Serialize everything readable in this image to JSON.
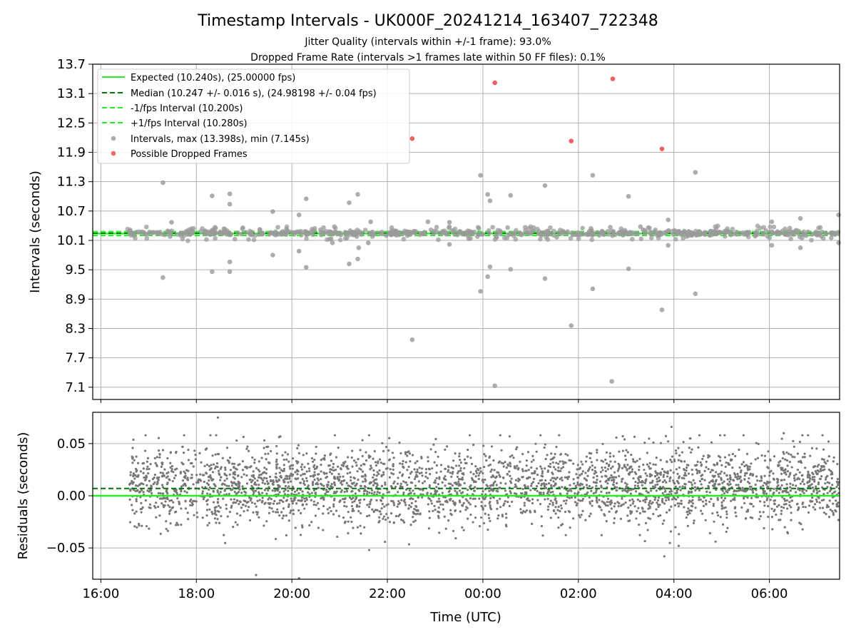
{
  "title": "Timestamp Intervals - UK000F_20241214_163407_722348",
  "subtitles": [
    "Jitter Quality (intervals within +/-1 frame): 93.0%",
    "Dropped Frame Rate (intervals >1 frames late within 50 FF files): 0.1%"
  ],
  "colors": {
    "expected": "#22ee22",
    "median": "#007700",
    "fps_band": "#22ee22",
    "intervals": "#999999",
    "dropped": "#ee4444",
    "residuals": "#777777",
    "grid": "#b0b0b0"
  },
  "chart_data": [
    {
      "type": "scatter",
      "name": "intervals-panel",
      "ylabel": "Intervals (seconds)",
      "xlabel": "",
      "x_unit": "hours since 16:00 UTC (axis ticks 16:00 .. 06:00, next day after 00:00)",
      "xlim": [
        -0.17,
        15.47
      ],
      "ylim": [
        6.85,
        13.7
      ],
      "grid": true,
      "legend_position": "upper-left",
      "y_ticks": [
        "7.1",
        "7.7",
        "8.3",
        "8.9",
        "9.5",
        "10.1",
        "10.7",
        "11.3",
        "11.9",
        "12.5",
        "13.1",
        "13.7"
      ],
      "y_tick_values": [
        7.1,
        7.7,
        8.3,
        8.9,
        9.5,
        10.1,
        10.7,
        11.3,
        11.9,
        12.5,
        13.1,
        13.7
      ],
      "reference_lines": [
        {
          "label": "Expected (10.240s), (25.00000 fps)",
          "value": 10.24,
          "style": "solid",
          "color_key": "expected"
        },
        {
          "label": "Median (10.247 +/- 0.016 s), (24.98198 +/- 0.04 fps)",
          "value": 10.247,
          "style": "dashed",
          "color_key": "median"
        },
        {
          "label": "-1/fps Interval (10.200s)",
          "value": 10.2,
          "style": "dashed",
          "color_key": "fps_band"
        },
        {
          "label": "+1/fps Interval (10.280s)",
          "value": 10.28,
          "style": "dashed",
          "color_key": "fps_band"
        }
      ],
      "series": [
        {
          "name": "Intervals, max (13.398s), min (7.145s)",
          "color_key": "intervals",
          "points": [
            [
              1.3,
              11.28
            ],
            [
              1.3,
              9.34
            ],
            [
              1.45,
              10.18
            ],
            [
              1.48,
              10.47
            ],
            [
              2.33,
              11.01
            ],
            [
              2.33,
              9.46
            ],
            [
              2.7,
              11.05
            ],
            [
              2.7,
              10.84
            ],
            [
              2.7,
              9.66
            ],
            [
              2.7,
              9.46
            ],
            [
              3.6,
              10.69
            ],
            [
              3.6,
              9.8
            ],
            [
              4.15,
              10.62
            ],
            [
              4.15,
              9.88
            ],
            [
              4.3,
              10.95
            ],
            [
              4.3,
              9.55
            ],
            [
              4.85,
              10.05
            ],
            [
              5.2,
              10.87
            ],
            [
              5.2,
              9.62
            ],
            [
              5.38,
              11.04
            ],
            [
              5.38,
              9.72
            ],
            [
              5.4,
              9.95
            ],
            [
              5.65,
              10.48
            ],
            [
              5.6,
              10.05
            ],
            [
              6.85,
              10.48
            ],
            [
              6.52,
              8.07
            ],
            [
              7.3,
              10.47
            ],
            [
              7.3,
              10.02
            ],
            [
              7.95,
              11.43
            ],
            [
              7.95,
              9.06
            ],
            [
              8.1,
              11.04
            ],
            [
              8.1,
              9.36
            ],
            [
              8.15,
              10.91
            ],
            [
              8.15,
              9.56
            ],
            [
              8.25,
              7.13
            ],
            [
              8.58,
              11.02
            ],
            [
              8.58,
              9.51
            ],
            [
              9.3,
              11.22
            ],
            [
              9.3,
              9.32
            ],
            [
              9.85,
              8.36
            ],
            [
              10.3,
              11.43
            ],
            [
              10.3,
              9.11
            ],
            [
              11.05,
              11.0
            ],
            [
              11.05,
              9.52
            ],
            [
              11.3,
              10.38
            ],
            [
              11.75,
              8.68
            ],
            [
              11.88,
              10.52
            ],
            [
              11.88,
              10.0
            ],
            [
              12.1,
              10.28
            ],
            [
              12.45,
              11.49
            ],
            [
              12.45,
              9.01
            ],
            [
              14.05,
              10.48
            ],
            [
              14.05,
              10.0
            ],
            [
              14.65,
              10.55
            ],
            [
              14.65,
              9.95
            ],
            [
              15.45,
              10.62
            ],
            [
              15.45,
              10.05
            ],
            [
              10.7,
              7.22
            ]
          ]
        },
        {
          "name": "Possible Dropped Frames",
          "color_key": "dropped",
          "points": [
            [
              6.52,
              12.18
            ],
            [
              8.25,
              13.32
            ],
            [
              9.85,
              12.13
            ],
            [
              10.72,
              13.4
            ],
            [
              11.75,
              11.97
            ]
          ]
        }
      ]
    },
    {
      "type": "scatter",
      "name": "residuals-panel",
      "ylabel": "Residuals (seconds)",
      "xlabel": "Time (UTC)",
      "xlim": [
        -0.17,
        15.47
      ],
      "ylim": [
        -0.08,
        0.08
      ],
      "grid": true,
      "y_ticks": [
        "−0.05",
        "0.00",
        "0.05"
      ],
      "y_tick_values": [
        -0.05,
        0.0,
        0.05
      ],
      "x_ticks": [
        "16:00",
        "18:00",
        "20:00",
        "22:00",
        "00:00",
        "02:00",
        "04:00",
        "06:00"
      ],
      "x_tick_values": [
        0,
        2,
        4,
        6,
        8,
        10,
        12,
        14
      ],
      "reference_lines": [
        {
          "value": 0.0,
          "style": "solid",
          "color_key": "expected"
        },
        {
          "value": 0.007,
          "style": "dashed",
          "color_key": "median"
        }
      ],
      "series": [
        {
          "name": "residuals",
          "color_key": "residuals",
          "x_range": [
            0.6,
            15.45
          ],
          "count": 3200,
          "mean": 0.01,
          "spread": 0.018,
          "outliers": [
            [
              2.45,
              0.075
            ],
            [
              3.25,
              -0.076
            ],
            [
              4.15,
              -0.079
            ],
            [
              11.95,
              0.066
            ],
            [
              11.8,
              -0.058
            ],
            [
              12.1,
              -0.048
            ],
            [
              14.3,
              0.06
            ]
          ]
        }
      ]
    }
  ]
}
